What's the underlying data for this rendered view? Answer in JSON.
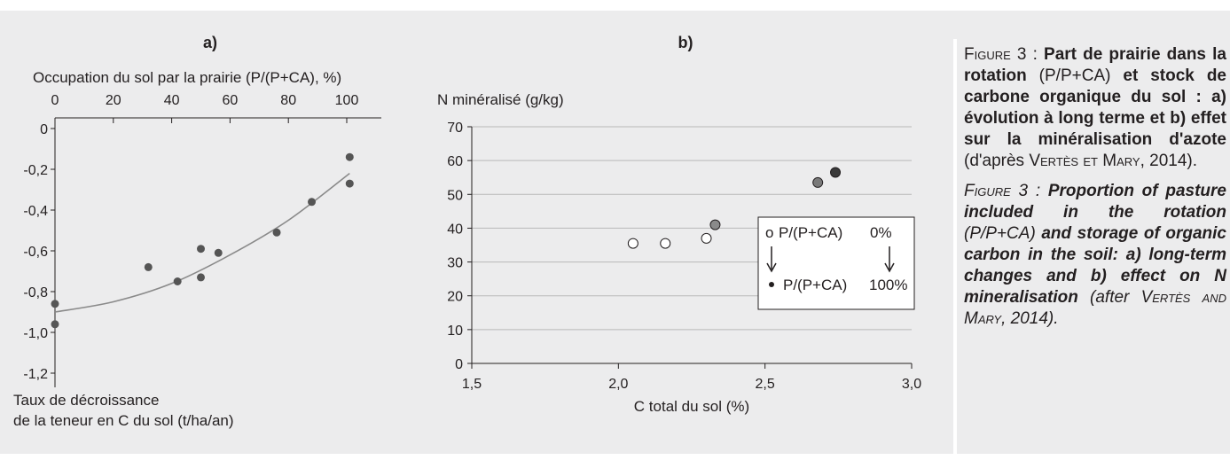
{
  "chart_data": [
    {
      "type": "scatter",
      "panel_label": "a)",
      "top_axis_title": "Occupation du sol par la prairie (P/(P+CA), %)",
      "ylabel_line1": "Taux de décroissance",
      "ylabel_line2": "de la teneur en C du sol (t/ha/an)",
      "x_range": [
        0,
        110
      ],
      "y_range": [
        -1.2,
        0
      ],
      "x_tick_labels": [
        "0",
        "20",
        "40",
        "60",
        "80",
        "100"
      ],
      "x_ticks": [
        0,
        20,
        40,
        60,
        80,
        100
      ],
      "y_tick_labels": [
        "0",
        "-0,2",
        "-0,4",
        "-0,6",
        "-0,8",
        "-1,0",
        "-1,2"
      ],
      "y_ticks": [
        0,
        -0.2,
        -0.4,
        -0.6,
        -0.8,
        -1.0,
        -1.2
      ],
      "points": [
        {
          "x": 0,
          "y": -0.86
        },
        {
          "x": 0,
          "y": -0.96
        },
        {
          "x": 32,
          "y": -0.68
        },
        {
          "x": 42,
          "y": -0.75
        },
        {
          "x": 50,
          "y": -0.59
        },
        {
          "x": 50,
          "y": -0.73
        },
        {
          "x": 56,
          "y": -0.61
        },
        {
          "x": 76,
          "y": -0.51
        },
        {
          "x": 88,
          "y": -0.36
        },
        {
          "x": 101,
          "y": -0.14
        },
        {
          "x": 101,
          "y": -0.27
        }
      ],
      "trend_curve": [
        {
          "x": 0,
          "y": -0.9
        },
        {
          "x": 20,
          "y": -0.85
        },
        {
          "x": 40,
          "y": -0.76
        },
        {
          "x": 60,
          "y": -0.62
        },
        {
          "x": 80,
          "y": -0.45
        },
        {
          "x": 101,
          "y": -0.22
        }
      ],
      "point_color": "#555555",
      "curve_color": "#8a8a8a"
    },
    {
      "type": "scatter",
      "panel_label": "b)",
      "ylabel": "N minéralisé (g/kg)",
      "xlabel": "C total du sol (%)",
      "x_range": [
        1.5,
        3.0
      ],
      "y_range": [
        0,
        70
      ],
      "x_ticks": [
        1.5,
        2.0,
        2.5,
        3.0
      ],
      "x_tick_labels": [
        "1,5",
        "2,0",
        "2,5",
        "3,0"
      ],
      "y_ticks": [
        0,
        10,
        20,
        30,
        40,
        50,
        60,
        70
      ],
      "y_tick_labels": [
        "0",
        "10",
        "20",
        "30",
        "40",
        "50",
        "60",
        "70"
      ],
      "grid": true,
      "points": [
        {
          "x": 2.05,
          "y": 35.5,
          "fill": "#ffffff"
        },
        {
          "x": 2.16,
          "y": 35.5,
          "fill": "#ffffff"
        },
        {
          "x": 2.3,
          "y": 37,
          "fill": "#ffffff"
        },
        {
          "x": 2.33,
          "y": 41,
          "fill": "#8a8a8a"
        },
        {
          "x": 2.68,
          "y": 53.5,
          "fill": "#7a7a7a"
        },
        {
          "x": 2.74,
          "y": 56.5,
          "fill": "#3a3a3a"
        }
      ],
      "legend": {
        "placement": "inside-right",
        "top_marker": "o",
        "top_label": "P/(P+CA)",
        "top_value": "0%",
        "bottom_marker": "•",
        "bottom_label": "P/(P+CA)",
        "bottom_value": "100%"
      }
    }
  ],
  "caption": {
    "fr_figure": "Figure 3 : ",
    "fr_bold": "Part de prairie dans la rotation",
    "fr_mid": " (P/P+CA) ",
    "fr_bold2": "et stock de carbone organique du sol : a) évolution à long terme et b) effet sur la minéralisation d'azote",
    "fr_ref_pre": " (d'après ",
    "fr_ref_author": "Vertès et Mary",
    "fr_ref_post": ", 2014).",
    "en_figure": "Figure 3 : ",
    "en_bold": "Proportion of pasture included in the rotation",
    "en_mid": " (P/P+CA) ",
    "en_bold2": "and storage of organic carbon in the soil: a) long-term changes and b) effect on N mineralisation",
    "en_ref_pre": " (after ",
    "en_ref_author": "Vertès and Mary",
    "en_ref_post": ", 2014)."
  }
}
